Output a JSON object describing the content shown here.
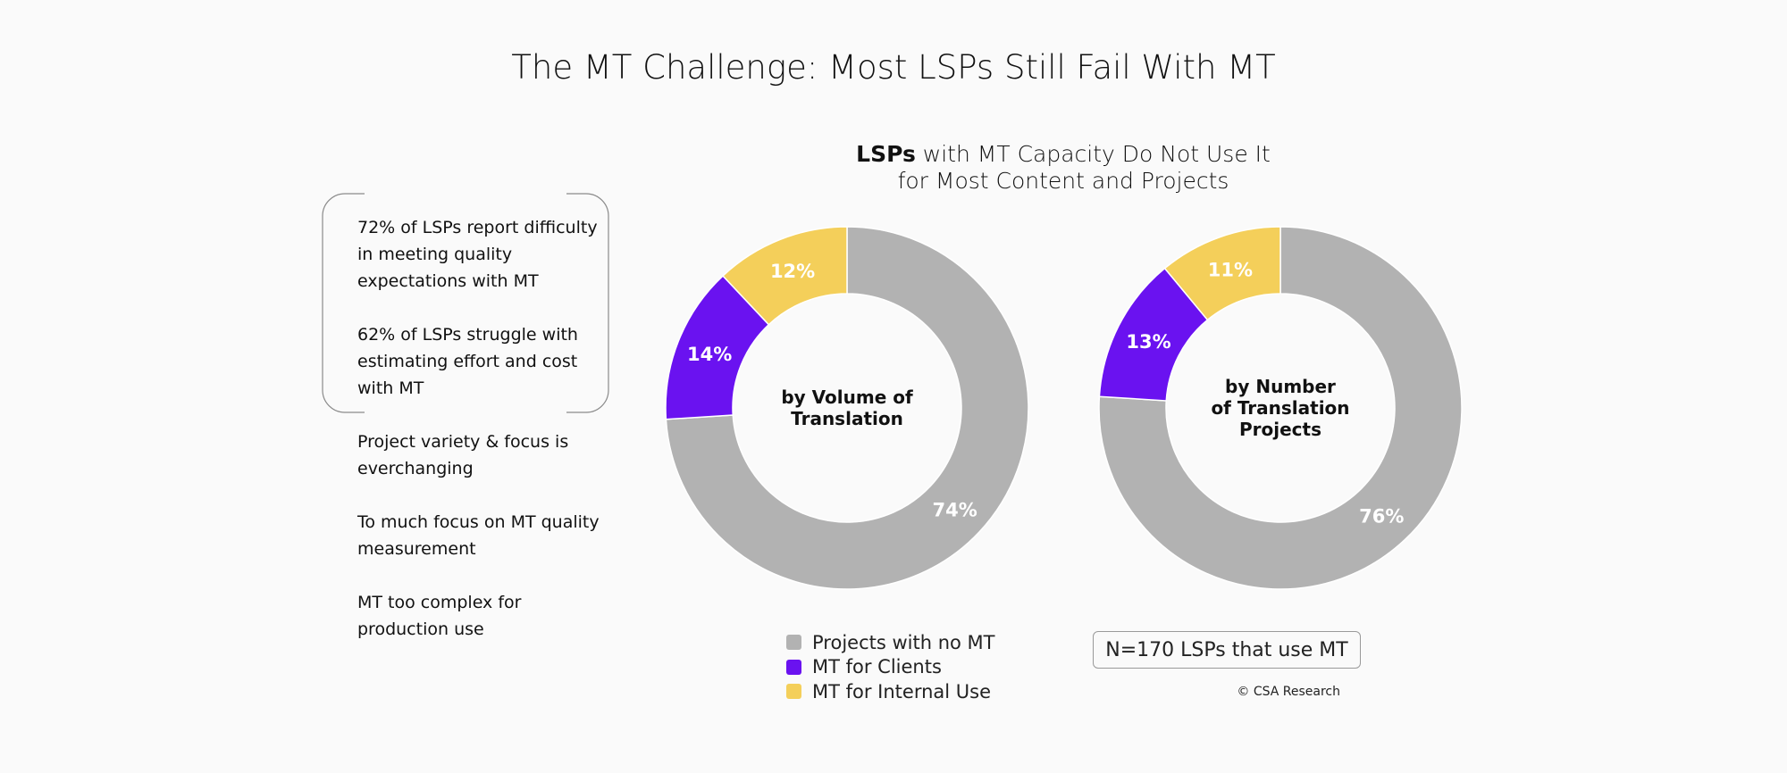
{
  "title": "The MT Challenge: Most LSPs Still Fail With MT",
  "subtitle": {
    "bold": "LSPs",
    "rest_line1": " with MT Capacity Do Not Use It",
    "line2": "for Most Content and Projects"
  },
  "notes": [
    "72% of LSPs report difficulty in meeting quality expectations with MT",
    "62% of LSPs struggle with estimating effort and cost with MT",
    "Project variety & focus is everchanging",
    "To much focus on MT quality measurement",
    "MT too complex for production use"
  ],
  "colors": {
    "no_mt": "#b2b2b2",
    "clients": "#6a12f0",
    "internal": "#f4cf5a"
  },
  "chart_data": [
    {
      "type": "donut",
      "center_label": [
        "by Volume of",
        "Translation"
      ],
      "slices": [
        {
          "name": "Projects with no MT",
          "value": 74,
          "label": "74%"
        },
        {
          "name": "MT for Clients",
          "value": 14,
          "label": "14%"
        },
        {
          "name": "MT for Internal Use",
          "value": 12,
          "label": "12%"
        }
      ]
    },
    {
      "type": "donut",
      "center_label": [
        "by Number",
        "of Translation",
        "Projects"
      ],
      "slices": [
        {
          "name": "Projects with no MT",
          "value": 76,
          "label": "76%"
        },
        {
          "name": "MT for Clients",
          "value": 13,
          "label": "13%"
        },
        {
          "name": "MT for Internal Use",
          "value": 11,
          "label": "11%"
        }
      ]
    }
  ],
  "legend": [
    {
      "label": "Projects with no MT",
      "color": "#b2b2b2"
    },
    {
      "label": "MT for Clients",
      "color": "#6a12f0"
    },
    {
      "label": "MT for Internal Use",
      "color": "#f4cf5a"
    }
  ],
  "sample_note": "N=170 LSPs that use MT",
  "credit": "© CSA Research"
}
